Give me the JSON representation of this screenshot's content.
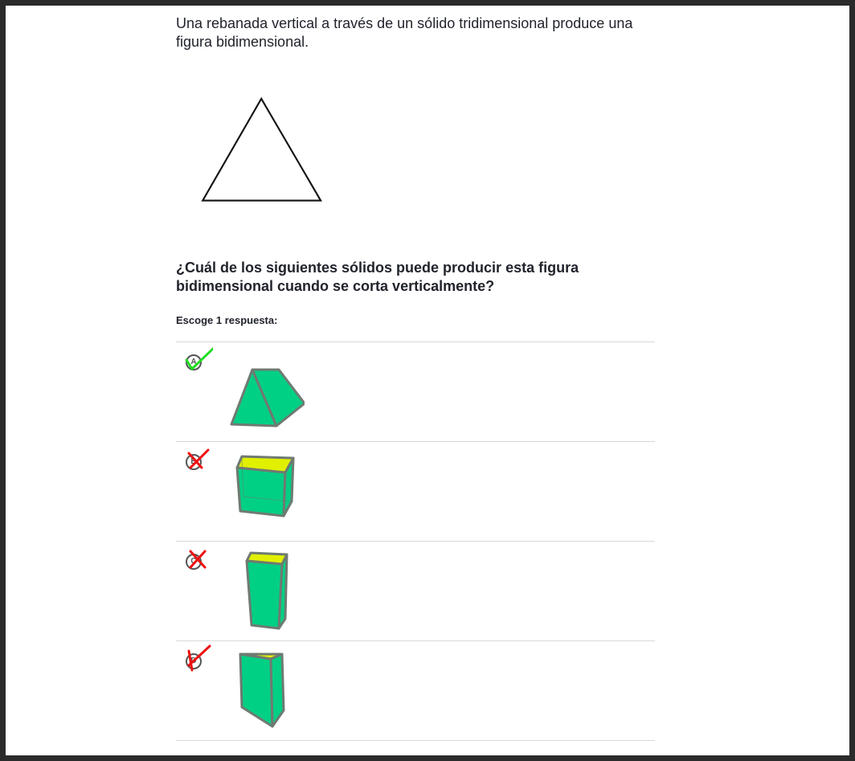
{
  "intro": "Una rebanada vertical a través de un sólido tridimensional produce una figura bidimensional.",
  "question": "¿Cuál de los siguientes sólidos puede producir esta figura bidimensional cuando se corta verticalmente?",
  "instructions": "Escoge 1 respuesta:",
  "choices": [
    {
      "letter": "A",
      "solid": "triangular-prism-lying",
      "mark": "correct"
    },
    {
      "letter": "B",
      "solid": "cube",
      "mark": "incorrect"
    },
    {
      "letter": "C",
      "solid": "rectangular-prism-tall",
      "mark": "incorrect"
    },
    {
      "letter": "D",
      "solid": "triangular-prism-standing",
      "mark": "incorrect"
    }
  ],
  "colors": {
    "solid_face": "#00d084",
    "solid_top": "#e0f000",
    "solid_edge": "#6f7a72",
    "correct_mark": "#22dd22",
    "incorrect_mark": "#ee1111"
  }
}
